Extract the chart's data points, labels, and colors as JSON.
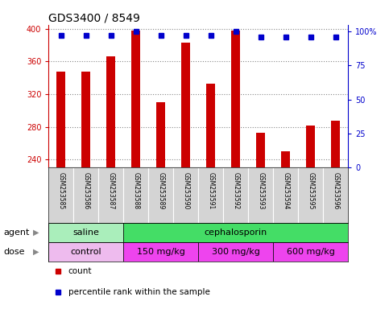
{
  "title": "GDS3400 / 8549",
  "samples": [
    "GSM253585",
    "GSM253586",
    "GSM253587",
    "GSM253588",
    "GSM253589",
    "GSM253590",
    "GSM253591",
    "GSM253592",
    "GSM253593",
    "GSM253594",
    "GSM253595",
    "GSM253596"
  ],
  "counts": [
    348,
    348,
    366,
    398,
    310,
    383,
    333,
    398,
    273,
    250,
    282,
    288
  ],
  "percentile_ranks": [
    97,
    97,
    97,
    100,
    97,
    97,
    97,
    100,
    96,
    96,
    96,
    96
  ],
  "ylim_left": [
    230,
    405
  ],
  "ylim_right": [
    0,
    105
  ],
  "yticks_left": [
    240,
    280,
    320,
    360,
    400
  ],
  "yticks_right": [
    0,
    25,
    50,
    75,
    100
  ],
  "bar_color": "#cc0000",
  "dot_color": "#0000cc",
  "agent_groups": [
    {
      "label": "saline",
      "start": 0,
      "end": 3,
      "color": "#aaeebb"
    },
    {
      "label": "cephalosporin",
      "start": 3,
      "end": 12,
      "color": "#44dd66"
    }
  ],
  "dose_groups": [
    {
      "label": "control",
      "start": 0,
      "end": 3,
      "color": "#eebbee"
    },
    {
      "label": "150 mg/kg",
      "start": 3,
      "end": 6,
      "color": "#ee44ee"
    },
    {
      "label": "300 mg/kg",
      "start": 6,
      "end": 9,
      "color": "#ee44ee"
    },
    {
      "label": "600 mg/kg",
      "start": 9,
      "end": 12,
      "color": "#ee44ee"
    }
  ],
  "grid_color": "#888888",
  "title_fontsize": 10,
  "tick_fontsize": 7,
  "label_fontsize": 8,
  "sample_fontsize": 5.5,
  "legend_fontsize": 7.5,
  "bar_width": 0.35
}
